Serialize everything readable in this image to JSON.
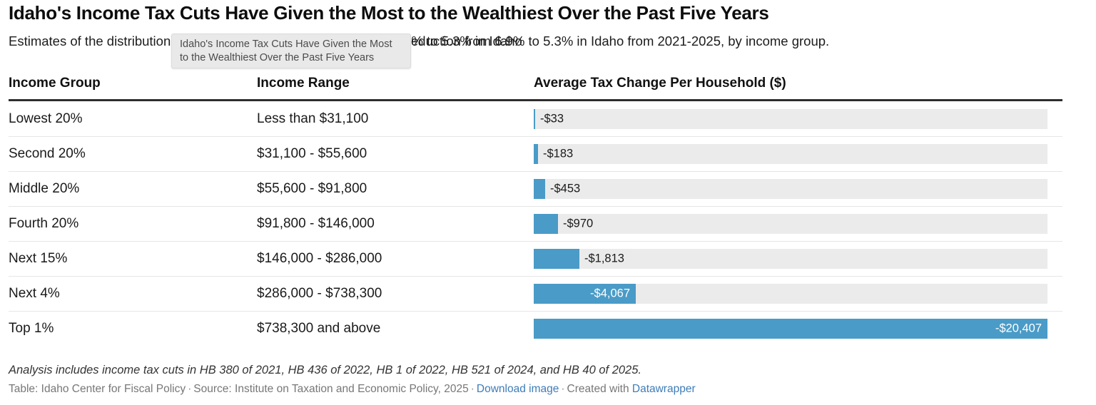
{
  "header": {
    "title": "Idaho's Income Tax Cuts Have Given the Most to the Wealthiest Over the Past Five Years",
    "subtitle_left": "Estimates of the distribution of the income tax rate reduction from 6.9% to 5.3% in Idaho",
    "subtitle_right": "eduction from 6.9% to 5.3% in Idaho from 2021-2025, by income group."
  },
  "tooltip": {
    "text": "Idaho's Income Tax Cuts Have Given the Most to the Wealthiest Over the Past Five Years"
  },
  "table": {
    "columns": [
      "Income Group",
      "Income Range",
      "Average Tax Change Per Household ($)"
    ],
    "rows": [
      {
        "group": "Lowest 20%",
        "range": "Less than $31,100",
        "label": "-$33",
        "value": -33
      },
      {
        "group": "Second 20%",
        "range": "$31,100 - $55,600",
        "label": "-$183",
        "value": -183
      },
      {
        "group": "Middle 20%",
        "range": "$55,600 - $91,800",
        "label": "-$453",
        "value": -453
      },
      {
        "group": "Fourth 20%",
        "range": "$91,800 - $146,000",
        "label": "-$970",
        "value": -970
      },
      {
        "group": "Next 15%",
        "range": "$146,000 - $286,000",
        "label": "-$1,813",
        "value": -1813
      },
      {
        "group": "Next 4%",
        "range": "$286,000 - $738,300",
        "label": "-$4,067",
        "value": -4067
      },
      {
        "group": "Top 1%",
        "range": "$738,300 and above",
        "label": "-$20,407",
        "value": -20407
      }
    ]
  },
  "chart_data": {
    "type": "bar",
    "orientation": "horizontal",
    "title": "Idaho's Income Tax Cuts Have Given the Most to the Wealthiest Over the Past Five Years",
    "subtitle_visible": "Estimates of the distribution [...] eduction from 6.9% to 5.3% in Idaho from 2021-2025, by income group.",
    "categories": [
      "Lowest 20%",
      "Second 20%",
      "Middle 20%",
      "Fourth 20%",
      "Next 15%",
      "Next 4%",
      "Top 1%"
    ],
    "income_ranges": [
      "Less than $31,100",
      "$31,100 - $55,600",
      "$55,600 - $91,800",
      "$91,800 - $146,000",
      "$146,000 - $286,000",
      "$286,000 - $738,300",
      "$738,300 and above"
    ],
    "values": [
      -33,
      -183,
      -453,
      -970,
      -1813,
      -4067,
      -20407
    ],
    "value_labels": [
      "-$33",
      "-$183",
      "-$453",
      "-$970",
      "-$1,813",
      "-$4,067",
      "-$20,407"
    ],
    "xlabel": "Average Tax Change Per Household ($)",
    "xlim": [
      0,
      20407
    ],
    "bars_show_absolute_values": true,
    "grid": false,
    "legend": false
  },
  "footer": {
    "note": "Analysis includes income tax cuts in HB 380 of 2021, HB 436 of 2022, HB 1 of 2022, HB 521 of 2024, and HB 40 of 2025.",
    "attribution": "Table: Idaho Center for Fiscal Policy",
    "source": "Source: Institute on Taxation and Economic Policy, 2025",
    "download_label": "Download image",
    "created_with": "Created with",
    "datawrapper_label": "Datawrapper",
    "sep": "·"
  },
  "colors": {
    "bar": "#4a9bc7",
    "track": "#ebebeb",
    "link": "#3e7cb9",
    "inside_label": "#ffffff",
    "header_rule": "#2e2e2e"
  }
}
